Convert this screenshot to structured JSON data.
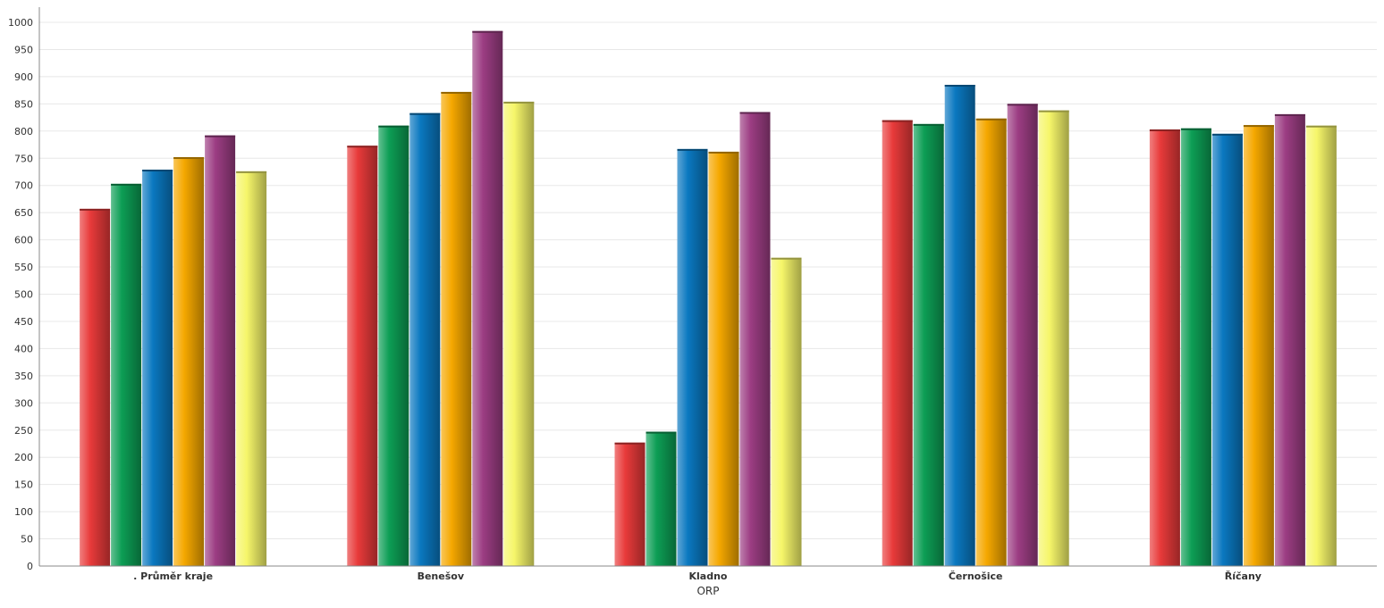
{
  "chart_data": {
    "type": "bar",
    "xlabel": "ORP",
    "ylabel": "",
    "ylim": [
      0,
      1000
    ],
    "yticks": [
      0,
      50,
      100,
      150,
      200,
      250,
      300,
      350,
      400,
      450,
      500,
      550,
      600,
      650,
      700,
      750,
      800,
      850,
      900,
      950,
      1000
    ],
    "grid": true,
    "legend": "none",
    "categories": [
      ". Průměr kraje",
      "Benešov",
      "Kladno",
      "Černošice",
      "Říčany"
    ],
    "series": [
      {
        "color": "#e83a3a",
        "values": [
          657,
          773,
          227,
          820,
          803
        ]
      },
      {
        "color": "#0d9e55",
        "values": [
          703,
          810,
          247,
          813,
          805
        ]
      },
      {
        "color": "#0a78c0",
        "values": [
          729,
          833,
          767,
          885,
          795
        ]
      },
      {
        "color": "#f5a800",
        "values": [
          752,
          872,
          762,
          823,
          811
        ]
      },
      {
        "color": "#9c3d83",
        "values": [
          792,
          984,
          835,
          850,
          831
        ]
      },
      {
        "color": "#f6f66a",
        "values": [
          726,
          854,
          567,
          838,
          810
        ]
      }
    ]
  }
}
